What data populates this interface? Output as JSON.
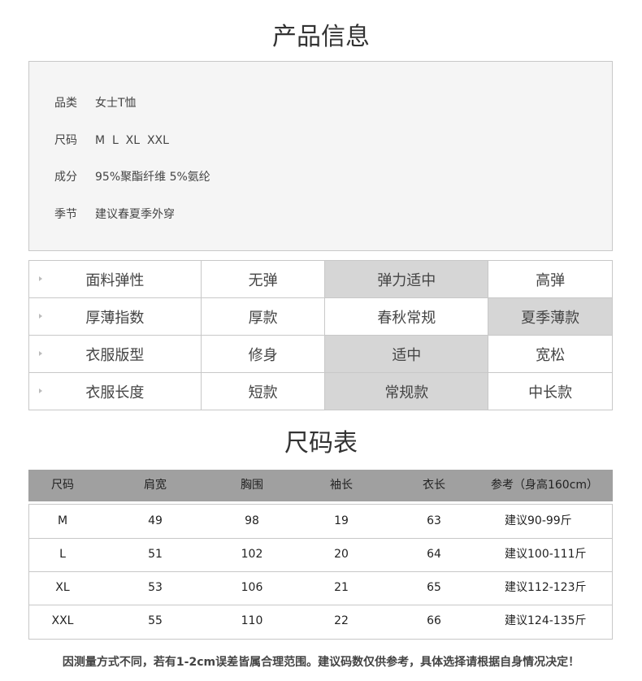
{
  "title": "产品信息",
  "info": [
    {
      "label": "品类",
      "value": "女士T恤"
    },
    {
      "label": "尺码",
      "value": "M  L  XL  XXL"
    },
    {
      "label": "成分",
      "value": "95%聚酯纤维 5%氨纶"
    },
    {
      "label": "季节",
      "value": "建议春夏季外穿"
    }
  ],
  "attributes": [
    {
      "label": "面料弹性",
      "options": [
        "无弹",
        "弹力适中",
        "高弹"
      ],
      "selected": 1
    },
    {
      "label": "厚薄指数",
      "options": [
        "厚款",
        "春秋常规",
        "夏季薄款"
      ],
      "selected": 2
    },
    {
      "label": "衣服版型",
      "options": [
        "修身",
        "适中",
        "宽松"
      ],
      "selected": 1
    },
    {
      "label": "衣服长度",
      "options": [
        "短款",
        "常规款",
        "中长款"
      ],
      "selected": 1
    }
  ],
  "size_title": "尺码表",
  "size_table": {
    "headers": [
      "尺码",
      "肩宽",
      "胸围",
      "袖长",
      "衣长",
      "参考（身高160cm）"
    ],
    "rows": [
      [
        "M",
        "49",
        "98",
        "19",
        "63",
        "建议90-99斤"
      ],
      [
        "L",
        "51",
        "102",
        "20",
        "64",
        "建议100-111斤"
      ],
      [
        "XL",
        "53",
        "106",
        "21",
        "65",
        "建议112-123斤"
      ],
      [
        "XXL",
        "55",
        "110",
        "22",
        "66",
        "建议124-135斤"
      ]
    ]
  },
  "footnote": "因测量方式不同，若有1-2cm误差皆属合理范围。建议码数仅供参考，具体选择请根据自身情况决定！"
}
